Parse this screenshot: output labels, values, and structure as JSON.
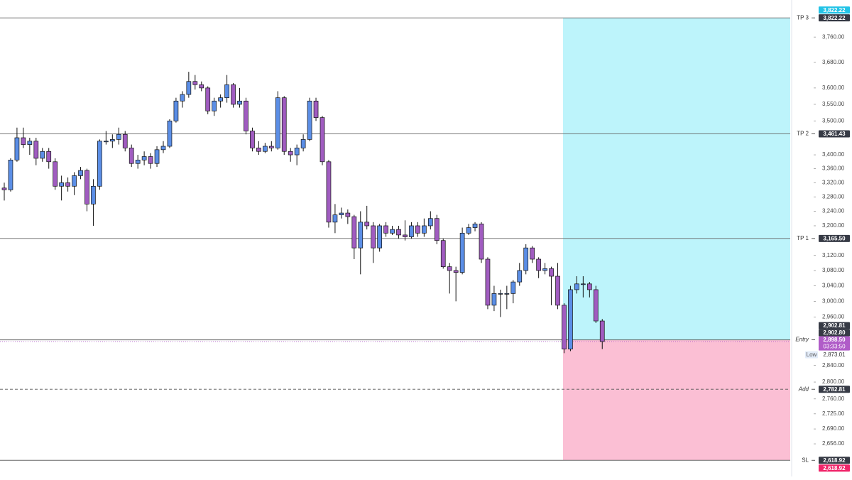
{
  "chart_data": {
    "type": "candlestick",
    "log_scale": true,
    "ylim": [
      2583,
      3881
    ],
    "yticks": [
      {
        "value": 3760,
        "label": "3,760.00"
      },
      {
        "value": 3680,
        "label": "3,680.00"
      },
      {
        "value": 3600,
        "label": "3,600.00"
      },
      {
        "value": 3550,
        "label": "3,550.00"
      },
      {
        "value": 3500,
        "label": "3,500.00"
      },
      {
        "value": 3400,
        "label": "3,400.00"
      },
      {
        "value": 3360,
        "label": "3,360.00"
      },
      {
        "value": 3320,
        "label": "3,320.00"
      },
      {
        "value": 3280,
        "label": "3,280.00"
      },
      {
        "value": 3240,
        "label": "3,240.00"
      },
      {
        "value": 3200,
        "label": "3,200.00"
      },
      {
        "value": 3120,
        "label": "3,120.00"
      },
      {
        "value": 3080,
        "label": "3,080.00"
      },
      {
        "value": 3040,
        "label": "3,040.00"
      },
      {
        "value": 3000,
        "label": "3,000.00"
      },
      {
        "value": 2960,
        "label": "2,960.00"
      },
      {
        "value": 2840,
        "label": "2,840.00"
      },
      {
        "value": 2800,
        "label": "2,800.00"
      },
      {
        "value": 2760,
        "label": "2,760.00"
      },
      {
        "value": 2725,
        "label": "2,725.00"
      },
      {
        "value": 2690,
        "label": "2,690.00"
      },
      {
        "value": 2656,
        "label": "2,656.00"
      }
    ],
    "up_color": "#5b8ee6",
    "down_color": "#a05cc0",
    "candles": [
      [
        3305,
        3320,
        3270,
        3300
      ],
      [
        3300,
        3390,
        3295,
        3385
      ],
      [
        3385,
        3480,
        3380,
        3450
      ],
      [
        3450,
        3480,
        3420,
        3430
      ],
      [
        3430,
        3450,
        3400,
        3440
      ],
      [
        3440,
        3450,
        3370,
        3390
      ],
      [
        3390,
        3420,
        3380,
        3410
      ],
      [
        3410,
        3420,
        3360,
        3380
      ],
      [
        3380,
        3390,
        3300,
        3310
      ],
      [
        3310,
        3340,
        3270,
        3320
      ],
      [
        3320,
        3335,
        3295,
        3310
      ],
      [
        3310,
        3350,
        3285,
        3340
      ],
      [
        3340,
        3365,
        3330,
        3355
      ],
      [
        3355,
        3360,
        3240,
        3260
      ],
      [
        3260,
        3330,
        3200,
        3310
      ],
      [
        3310,
        3445,
        3300,
        3440
      ],
      [
        3440,
        3470,
        3430,
        3440
      ],
      [
        3440,
        3460,
        3420,
        3445
      ],
      [
        3445,
        3480,
        3430,
        3460
      ],
      [
        3460,
        3470,
        3410,
        3420
      ],
      [
        3420,
        3430,
        3365,
        3375
      ],
      [
        3375,
        3400,
        3360,
        3385
      ],
      [
        3385,
        3410,
        3370,
        3395
      ],
      [
        3395,
        3405,
        3360,
        3375
      ],
      [
        3375,
        3425,
        3365,
        3415
      ],
      [
        3415,
        3440,
        3405,
        3425
      ],
      [
        3425,
        3505,
        3420,
        3500
      ],
      [
        3500,
        3570,
        3495,
        3560
      ],
      [
        3560,
        3590,
        3540,
        3580
      ],
      [
        3580,
        3650,
        3570,
        3620
      ],
      [
        3620,
        3640,
        3595,
        3610
      ],
      [
        3610,
        3620,
        3590,
        3600
      ],
      [
        3600,
        3605,
        3520,
        3530
      ],
      [
        3530,
        3570,
        3515,
        3560
      ],
      [
        3560,
        3580,
        3540,
        3570
      ],
      [
        3570,
        3640,
        3555,
        3610
      ],
      [
        3610,
        3615,
        3540,
        3550
      ],
      [
        3550,
        3600,
        3540,
        3560
      ],
      [
        3560,
        3570,
        3460,
        3470
      ],
      [
        3470,
        3480,
        3410,
        3420
      ],
      [
        3420,
        3440,
        3400,
        3410
      ],
      [
        3410,
        3435,
        3405,
        3425
      ],
      [
        3425,
        3440,
        3410,
        3420
      ],
      [
        3420,
        3590,
        3415,
        3570
      ],
      [
        3570,
        3575,
        3400,
        3410
      ],
      [
        3410,
        3420,
        3380,
        3400
      ],
      [
        3400,
        3430,
        3370,
        3420
      ],
      [
        3420,
        3460,
        3410,
        3445
      ],
      [
        3445,
        3570,
        3440,
        3560
      ],
      [
        3560,
        3570,
        3500,
        3510
      ],
      [
        3510,
        3515,
        3370,
        3380
      ],
      [
        3380,
        3385,
        3195,
        3210
      ],
      [
        3210,
        3260,
        3180,
        3230
      ],
      [
        3230,
        3250,
        3220,
        3235
      ],
      [
        3235,
        3245,
        3205,
        3225
      ],
      [
        3225,
        3230,
        3110,
        3140
      ],
      [
        3140,
        3240,
        3070,
        3210
      ],
      [
        3210,
        3255,
        3190,
        3200
      ],
      [
        3200,
        3210,
        3100,
        3140
      ],
      [
        3140,
        3205,
        3130,
        3200
      ],
      [
        3200,
        3210,
        3170,
        3180
      ],
      [
        3180,
        3200,
        3175,
        3190
      ],
      [
        3190,
        3200,
        3165,
        3175
      ],
      [
        3175,
        3215,
        3160,
        3170
      ],
      [
        3170,
        3210,
        3165,
        3200
      ],
      [
        3200,
        3210,
        3170,
        3180
      ],
      [
        3180,
        3220,
        3170,
        3200
      ],
      [
        3200,
        3240,
        3190,
        3220
      ],
      [
        3220,
        3230,
        3150,
        3160
      ],
      [
        3160,
        3165,
        3085,
        3090
      ],
      [
        3090,
        3100,
        3020,
        3080
      ],
      [
        3080,
        3090,
        3000,
        3075
      ],
      [
        3075,
        3195,
        3070,
        3180
      ],
      [
        3180,
        3205,
        3175,
        3195
      ],
      [
        3195,
        3210,
        3185,
        3205
      ],
      [
        3205,
        3210,
        3100,
        3110
      ],
      [
        3110,
        3115,
        2980,
        2990
      ],
      [
        2990,
        3040,
        2975,
        3020
      ],
      [
        3020,
        3030,
        2960,
        3020
      ],
      [
        3020,
        3040,
        2980,
        3020
      ],
      [
        3020,
        3055,
        2995,
        3050
      ],
      [
        3050,
        3100,
        3040,
        3080
      ],
      [
        3080,
        3150,
        3070,
        3140
      ],
      [
        3140,
        3145,
        3100,
        3110
      ],
      [
        3110,
        3115,
        3060,
        3080
      ],
      [
        3080,
        3100,
        3070,
        3085
      ],
      [
        3085,
        3090,
        2990,
        3065
      ],
      [
        3065,
        3100,
        2980,
        2990
      ],
      [
        2990,
        2995,
        2870,
        2880
      ],
      [
        2880,
        3040,
        2875,
        3030
      ],
      [
        3030,
        3065,
        3020,
        3045
      ],
      [
        3045,
        3065,
        3010,
        3045
      ],
      [
        3045,
        3050,
        3010,
        3030
      ],
      [
        3030,
        3040,
        2945,
        2950
      ],
      [
        2950,
        2955,
        2880,
        2898.5
      ]
    ],
    "levels": [
      {
        "name": "TP 3",
        "value": 3822.22,
        "label": "3,822.22"
      },
      {
        "name": "TP 2",
        "value": 3461.43,
        "label": "3,461.43"
      },
      {
        "name": "TP 1",
        "value": 3165.5,
        "label": "3,165.50"
      },
      {
        "name": "Entry",
        "value": 2902.81,
        "label": "2,902.81"
      },
      {
        "name": "Add",
        "value": 2782.81,
        "label": "2,782.81",
        "dashed": true
      },
      {
        "name": "SL",
        "value": 2618.92,
        "label": "2,618.92"
      }
    ],
    "position": {
      "entry": 2902.81,
      "target": 3822.22,
      "stop": 2618.92,
      "target_label": "3,822.22",
      "stop_label": "2,618.92",
      "entry_alt": {
        "value": 2902.8,
        "label": "2,902.80"
      },
      "target_color": "#bdf4fb",
      "stop_color": "#fbbfd4"
    },
    "last_price": {
      "value": 2898.5,
      "label": "2,898.50",
      "countdown": "03:33:50",
      "color": "#b05cc8"
    },
    "low": {
      "text": "Low",
      "value": 2873.01,
      "label": "2,873.01"
    }
  }
}
